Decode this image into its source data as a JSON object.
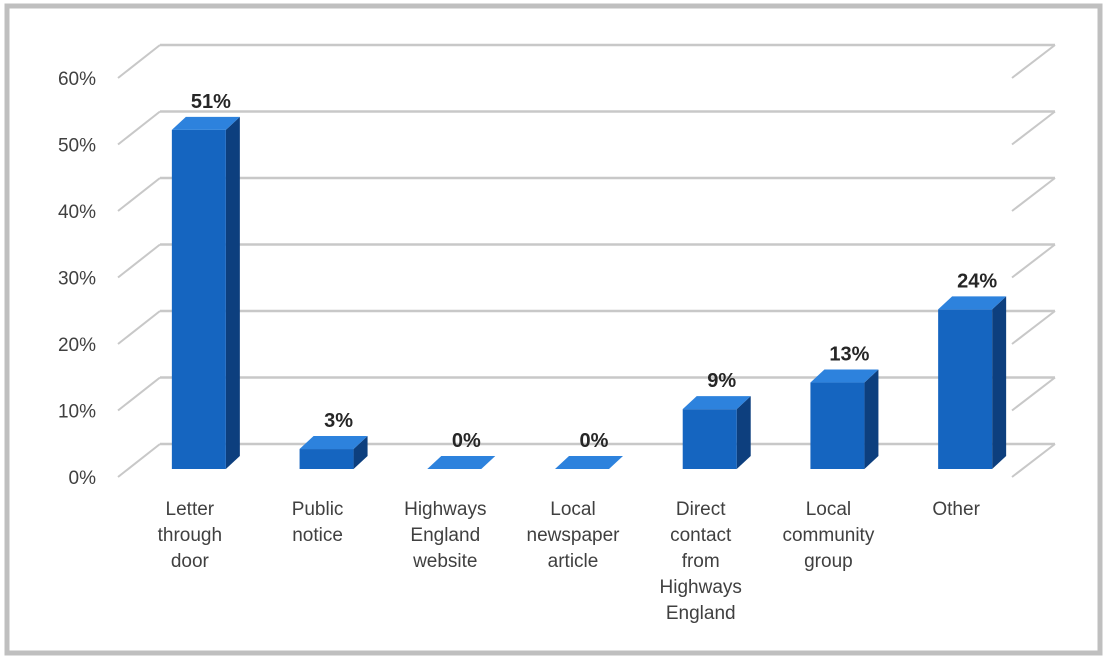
{
  "chart_data": {
    "type": "bar",
    "style": "3d-column",
    "categories": [
      "Letter through door",
      "Public notice",
      "Highways England website",
      "Local newspaper article",
      "Direct contact from Highways England",
      "Local community group",
      "Other"
    ],
    "category_lines": [
      [
        "Letter",
        "through",
        "door"
      ],
      [
        "Public",
        "notice"
      ],
      [
        "Highways",
        "England",
        "website"
      ],
      [
        "Local",
        "newspaper",
        "article"
      ],
      [
        "Direct",
        "contact",
        "from",
        "Highways",
        "England"
      ],
      [
        "Local",
        "community",
        "group"
      ],
      [
        "Other"
      ]
    ],
    "values": [
      51,
      3,
      0,
      0,
      9,
      13,
      24
    ],
    "data_labels": [
      "51%",
      "3%",
      "0%",
      "0%",
      "9%",
      "13%",
      "24%"
    ],
    "yticks": [
      "0%",
      "10%",
      "20%",
      "30%",
      "40%",
      "50%",
      "60%"
    ],
    "ylim": [
      0,
      60
    ],
    "grid": true,
    "legend": "none",
    "colors": {
      "bar_front": "#1565c0",
      "bar_side": "#0d3f7e",
      "bar_top": "#2d82dd",
      "grid": "#c8c8c8",
      "frame": "#bfbfbf"
    }
  }
}
